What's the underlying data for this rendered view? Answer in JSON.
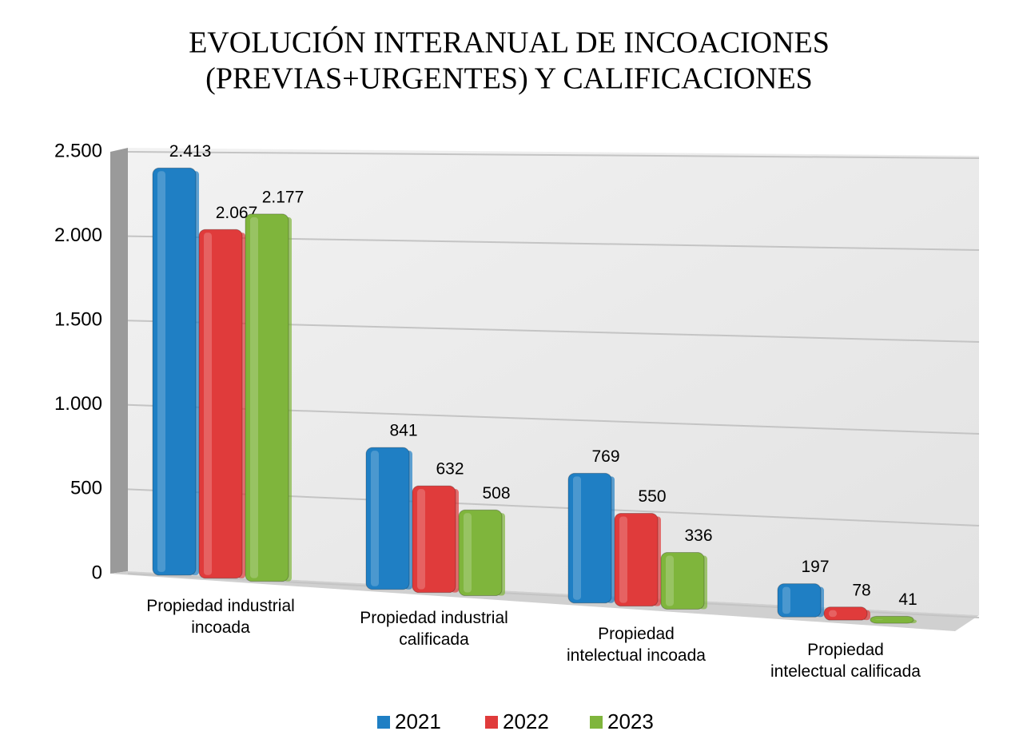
{
  "chart_data": {
    "type": "bar",
    "title": [
      "EVOLUCIÓN INTERANUAL DE INCOACIONES",
      "(PREVIAS+URGENTES) Y CALIFICACIONES"
    ],
    "categories": [
      [
        "Propiedad industrial",
        "incoada"
      ],
      [
        "Propiedad industrial",
        "calificada"
      ],
      [
        "Propiedad",
        "intelectual incoada"
      ],
      [
        "Propiedad",
        "intelectual calificada"
      ]
    ],
    "series": [
      {
        "name": "2021",
        "color": "#1f7fc4",
        "values": [
          2413,
          841,
          769,
          197
        ],
        "value_labels": [
          "2.413",
          "841",
          "769",
          "197"
        ]
      },
      {
        "name": "2022",
        "color": "#e03b3b",
        "values": [
          2067,
          632,
          550,
          78
        ],
        "value_labels": [
          "2.067",
          "632",
          "550",
          "78"
        ]
      },
      {
        "name": "2023",
        "color": "#7fb53c",
        "values": [
          2177,
          508,
          336,
          41
        ],
        "value_labels": [
          "2.177",
          "508",
          "336",
          "41"
        ]
      }
    ],
    "ylim": [
      0,
      2500
    ],
    "yticks": [
      0,
      500,
      {
        "value": 1000,
        "label": "1.000"
      },
      {
        "value": 1500,
        "label": "1.500"
      },
      {
        "value": 2000,
        "label": "2.000"
      },
      {
        "value": 2500,
        "label": "2.500"
      }
    ],
    "grid": true,
    "legend": "bottom"
  }
}
